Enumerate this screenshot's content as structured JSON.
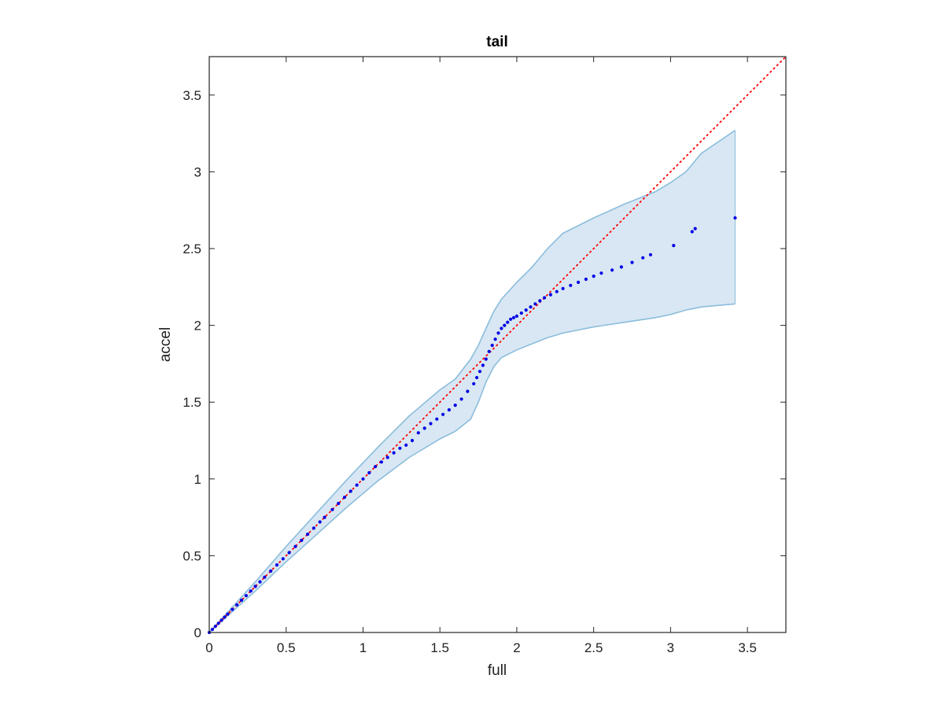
{
  "chart_data": {
    "type": "scatter",
    "title": "tail",
    "xlabel": "full",
    "ylabel": "accel",
    "xlim": [
      0,
      3.75
    ],
    "ylim": [
      0,
      3.75
    ],
    "xticks": [
      0,
      0.5,
      1,
      1.5,
      2,
      2.5,
      3,
      3.5
    ],
    "yticks": [
      0,
      0.5,
      1,
      1.5,
      2,
      2.5,
      3,
      3.5
    ],
    "xtick_labels": [
      "0",
      "0.5",
      "1",
      "1.5",
      "2",
      "2.5",
      "3",
      "3.5"
    ],
    "ytick_labels": [
      "0",
      "0.5",
      "1",
      "1.5",
      "2",
      "2.5",
      "3",
      "3.5"
    ],
    "grid": false,
    "reference_line": {
      "style": "dotted",
      "color": "#ff0000",
      "x": [
        0,
        3.75
      ],
      "y": [
        0,
        3.75
      ]
    },
    "band": {
      "fill_color": "#d8e7f3",
      "edge_color": "#8bbddc",
      "x": [
        0,
        0.1,
        0.3,
        0.5,
        0.7,
        0.9,
        1.1,
        1.3,
        1.5,
        1.6,
        1.7,
        1.75,
        1.8,
        1.85,
        1.9,
        2.0,
        2.1,
        2.2,
        2.3,
        2.5,
        2.7,
        2.9,
        3.0,
        3.1,
        3.2,
        3.42
      ],
      "upper": [
        0,
        0.11,
        0.33,
        0.56,
        0.78,
        1.0,
        1.21,
        1.41,
        1.58,
        1.65,
        1.78,
        1.87,
        1.98,
        2.09,
        2.17,
        2.28,
        2.38,
        2.5,
        2.6,
        2.7,
        2.79,
        2.87,
        2.93,
        3.0,
        3.12,
        3.27
      ],
      "lower": [
        0,
        0.09,
        0.27,
        0.46,
        0.64,
        0.82,
        0.99,
        1.14,
        1.26,
        1.31,
        1.39,
        1.5,
        1.63,
        1.73,
        1.79,
        1.84,
        1.88,
        1.92,
        1.95,
        1.99,
        2.02,
        2.05,
        2.07,
        2.1,
        2.12,
        2.14
      ]
    },
    "series": [
      {
        "color": "#0000e6",
        "x": [
          0,
          0.02,
          0.04,
          0.06,
          0.08,
          0.1,
          0.12,
          0.15,
          0.18,
          0.21,
          0.24,
          0.27,
          0.3,
          0.33,
          0.36,
          0.4,
          0.44,
          0.48,
          0.52,
          0.56,
          0.6,
          0.64,
          0.68,
          0.72,
          0.75,
          0.8,
          0.84,
          0.88,
          0.92,
          0.96,
          1.0,
          1.04,
          1.08,
          1.12,
          1.16,
          1.2,
          1.24,
          1.28,
          1.32,
          1.36,
          1.4,
          1.44,
          1.48,
          1.52,
          1.56,
          1.6,
          1.64,
          1.68,
          1.72,
          1.74,
          1.76,
          1.78,
          1.8,
          1.82,
          1.84,
          1.86,
          1.88,
          1.9,
          1.92,
          1.94,
          1.96,
          1.98,
          2.0,
          2.03,
          2.06,
          2.09,
          2.12,
          2.15,
          2.18,
          2.22,
          2.26,
          2.3,
          2.35,
          2.4,
          2.45,
          2.5,
          2.55,
          2.62,
          2.68,
          2.75,
          2.82,
          2.87,
          3.02,
          3.14,
          3.16,
          3.42
        ],
        "y": [
          0,
          0.02,
          0.04,
          0.06,
          0.08,
          0.1,
          0.12,
          0.15,
          0.18,
          0.21,
          0.24,
          0.27,
          0.3,
          0.33,
          0.36,
          0.4,
          0.44,
          0.48,
          0.52,
          0.56,
          0.6,
          0.64,
          0.68,
          0.72,
          0.75,
          0.8,
          0.84,
          0.88,
          0.92,
          0.96,
          1.0,
          1.04,
          1.08,
          1.11,
          1.14,
          1.17,
          1.2,
          1.22,
          1.25,
          1.3,
          1.33,
          1.36,
          1.39,
          1.42,
          1.45,
          1.48,
          1.52,
          1.57,
          1.62,
          1.66,
          1.7,
          1.74,
          1.78,
          1.83,
          1.87,
          1.91,
          1.95,
          1.98,
          2.0,
          2.02,
          2.04,
          2.05,
          2.06,
          2.08,
          2.1,
          2.12,
          2.14,
          2.16,
          2.18,
          2.2,
          2.22,
          2.24,
          2.26,
          2.28,
          2.3,
          2.32,
          2.34,
          2.36,
          2.38,
          2.41,
          2.44,
          2.46,
          2.52,
          2.61,
          2.63,
          2.7
        ]
      }
    ]
  }
}
